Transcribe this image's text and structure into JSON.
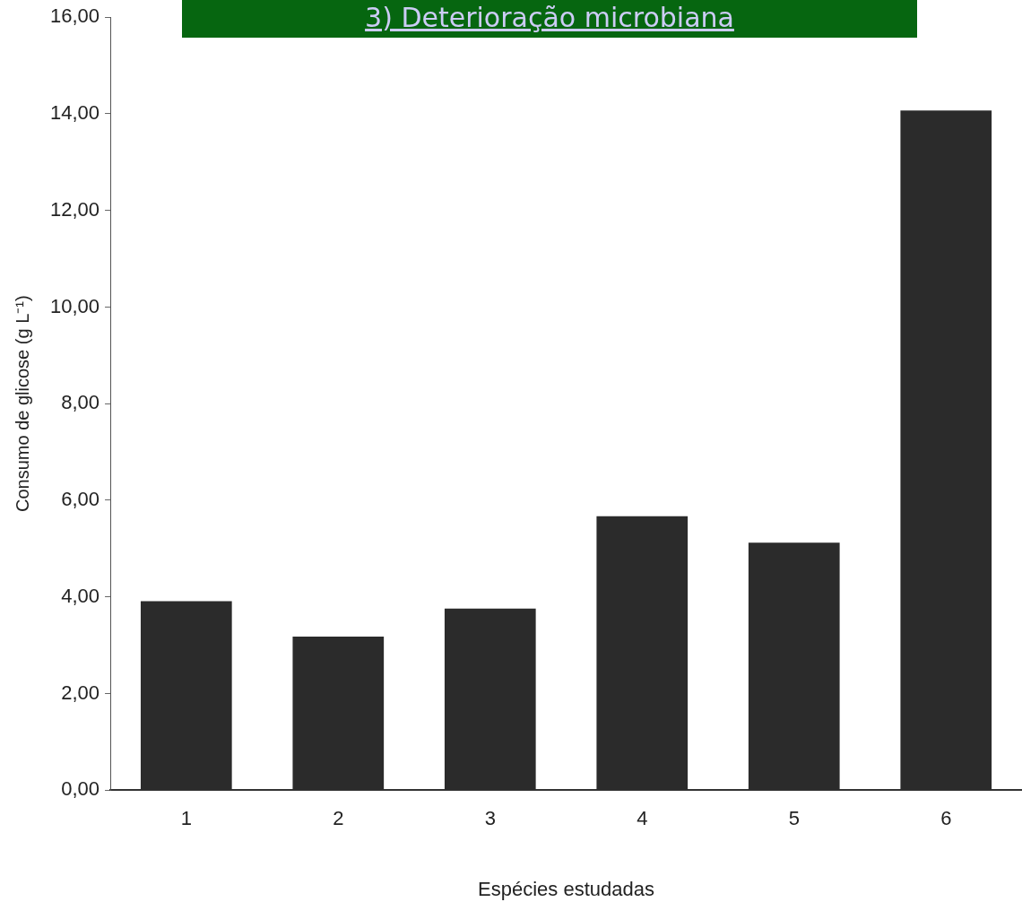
{
  "chart_data": {
    "type": "bar",
    "title": "3) Deterioração microbiana",
    "xlabel": "Espécies estudadas",
    "ylabel": "Consumo de glicose (g L⁻¹)",
    "categories": [
      "1",
      "2",
      "3",
      "4",
      "5",
      "6"
    ],
    "values": [
      3.91,
      3.18,
      3.76,
      5.67,
      5.12,
      14.07
    ],
    "color": "#2b2b2b",
    "ylim": [
      0,
      16
    ],
    "yticks": [
      {
        "value": 0,
        "label": "0,00"
      },
      {
        "value": 2,
        "label": "2,00"
      },
      {
        "value": 4,
        "label": "4,00"
      },
      {
        "value": 6,
        "label": "6,00"
      },
      {
        "value": 8,
        "label": "8,00"
      },
      {
        "value": 10,
        "label": "10,00"
      },
      {
        "value": 12,
        "label": "12,00"
      },
      {
        "value": 14,
        "label": "14,00"
      },
      {
        "value": 16,
        "label": "16,00"
      }
    ],
    "grid": false,
    "legend": false
  }
}
